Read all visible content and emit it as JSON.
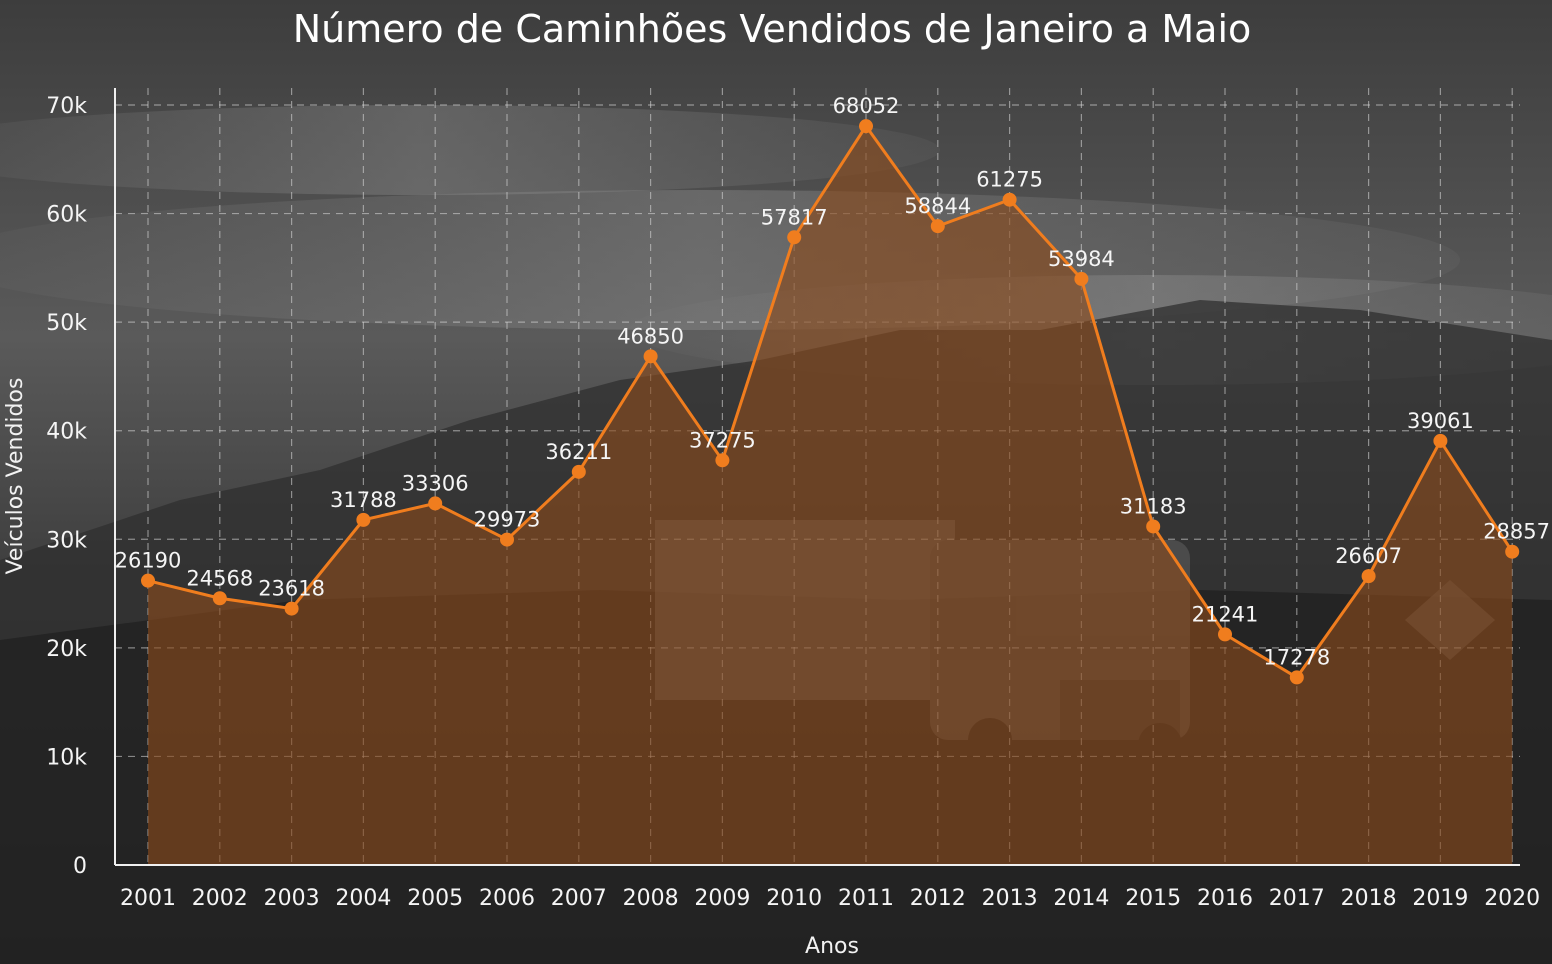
{
  "chart_data": {
    "type": "area",
    "title": "Número de Caminhões Vendidos de Janeiro a Maio",
    "xlabel": "Anos",
    "ylabel": "Veículos Vendidos",
    "ylim": [
      0,
      70000
    ],
    "grid": true,
    "y_ticks": [
      {
        "value": 0,
        "label": "0"
      },
      {
        "value": 10000,
        "label": "10k"
      },
      {
        "value": 20000,
        "label": "20k"
      },
      {
        "value": 30000,
        "label": "30k"
      },
      {
        "value": 40000,
        "label": "40k"
      },
      {
        "value": 50000,
        "label": "50k"
      },
      {
        "value": 60000,
        "label": "60k"
      },
      {
        "value": 70000,
        "label": "70k"
      }
    ],
    "categories": [
      "2001",
      "2002",
      "2003",
      "2004",
      "2005",
      "2006",
      "2007",
      "2008",
      "2009",
      "2010",
      "2011",
      "2012",
      "2013",
      "2014",
      "2015",
      "2016",
      "2017",
      "2018",
      "2019",
      "2020"
    ],
    "values": [
      26190,
      24568,
      23618,
      31788,
      33306,
      29973,
      36211,
      46850,
      37275,
      57817,
      68052,
      58844,
      61275,
      53984,
      31183,
      21241,
      17278,
      26607,
      39061,
      28857
    ],
    "line_color": "#f07d1e",
    "fill_color": "#8a4a1c",
    "background_image": "dark truck on highway with mountains"
  }
}
